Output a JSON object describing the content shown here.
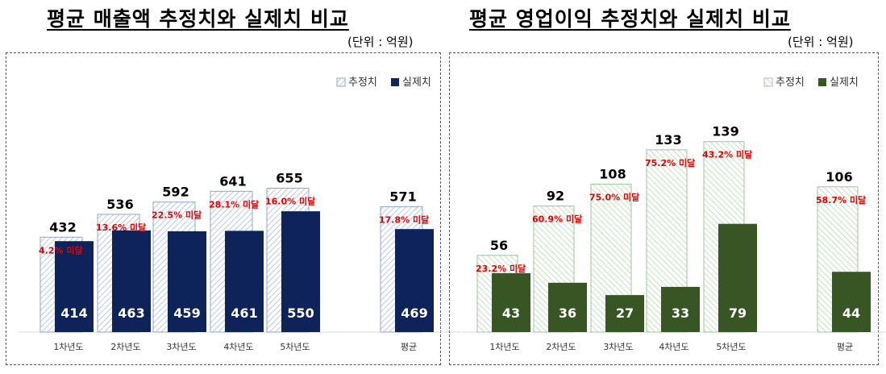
{
  "chart_data": [
    {
      "type": "bar",
      "title": "평균 매출액 추정치와 실제치 비교",
      "unit_label": "(단위 : 억원)",
      "categories": [
        "1차년도",
        "2차년도",
        "3차년도",
        "4차년도",
        "5차년도",
        "평균"
      ],
      "series": [
        {
          "name": "추정치",
          "values": [
            432,
            536,
            592,
            641,
            655,
            571
          ]
        },
        {
          "name": "실제치",
          "values": [
            414,
            463,
            459,
            461,
            550,
            469
          ]
        }
      ],
      "annotations": [
        "4.2% 미달",
        "13.6% 미달",
        "22.5% 미달",
        "28.1% 미달",
        "16.0% 미달",
        "17.8% 미달"
      ],
      "legend_position": "top-right",
      "colors": {
        "estimate_stroke": "#8fa6c8",
        "estimate_hatch": "#a9bcd8",
        "actual": "#0d2359",
        "annotation": "#e60000"
      }
    },
    {
      "type": "bar",
      "title": "평균 영업이익 추정치와 실제치 비교",
      "unit_label": "(단위 : 억원)",
      "categories": [
        "1차년도",
        "2차년도",
        "3차년도",
        "4차년도",
        "5차년도",
        "평균"
      ],
      "series": [
        {
          "name": "추정치",
          "values": [
            56,
            92,
            108,
            133,
            139,
            106
          ]
        },
        {
          "name": "실제치",
          "values": [
            43,
            36,
            27,
            33,
            79,
            44
          ]
        }
      ],
      "annotations": [
        "23.2% 미달",
        "60.9% 미달",
        "75.0% 미달",
        "75.2% 미달",
        "43.2% 미달",
        "58.7% 미달"
      ],
      "legend_position": "top-right",
      "colors": {
        "estimate_stroke": "#9cc59a",
        "estimate_hatch": "#b7d9b3",
        "actual": "#375623",
        "annotation": "#e60000"
      }
    }
  ]
}
